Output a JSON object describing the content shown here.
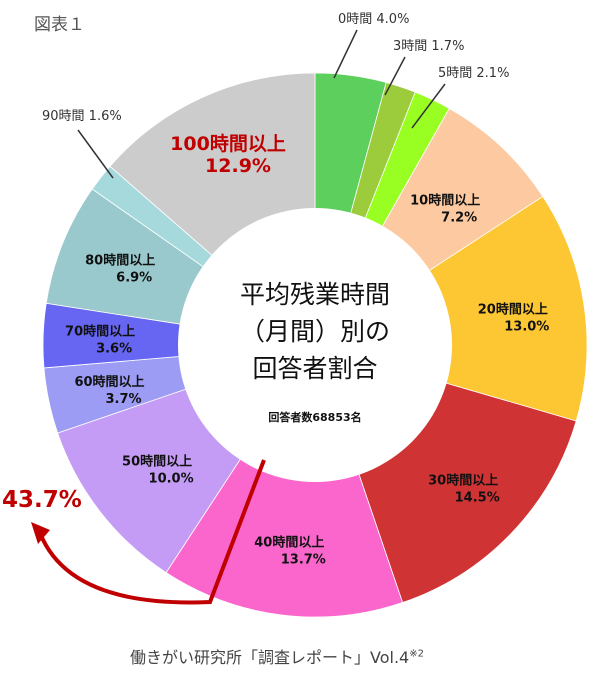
{
  "figure_label": "図表１",
  "source_text": "働きがい研究所「調査レポート」Vol.4",
  "source_note": "※2",
  "bracket_total": "43.7%",
  "chart_data": {
    "type": "pie",
    "center_title_lines": [
      "平均残業時間",
      "（月間）別の",
      "回答者割合"
    ],
    "center_subtitle": "回答者数68853名",
    "slices": [
      {
        "label": "0時間",
        "value": 4.0,
        "value_text": "4.0%",
        "color": "#5dcf5d"
      },
      {
        "label": "3時間",
        "value": 1.7,
        "value_text": "1.7%",
        "color": "#9ccc3c"
      },
      {
        "label": "5時間",
        "value": 2.1,
        "value_text": "2.1%",
        "color": "#99ff22"
      },
      {
        "label": "10時間以上",
        "value": 7.2,
        "value_text": "7.2%",
        "color": "#fcc9a0"
      },
      {
        "label": "20時間以上",
        "value": 13.0,
        "value_text": "13.0%",
        "color": "#fdc733"
      },
      {
        "label": "30時間以上",
        "value": 14.5,
        "value_text": "14.5%",
        "color": "#cf3333"
      },
      {
        "label": "40時間以上",
        "value": 13.7,
        "value_text": "13.7%",
        "color": "#fa66cc"
      },
      {
        "label": "50時間以上",
        "value": 10.0,
        "value_text": "10.0%",
        "color": "#c49cf5"
      },
      {
        "label": "60時間以上",
        "value": 3.7,
        "value_text": "3.7%",
        "color": "#9c9cf5"
      },
      {
        "label": "70時間以上",
        "value": 3.6,
        "value_text": "3.6%",
        "color": "#6666f2"
      },
      {
        "label": "80時間以上",
        "value": 6.9,
        "value_text": "6.9%",
        "color": "#99c9cc"
      },
      {
        "label": "90時間",
        "value": 1.6,
        "value_text": "1.6%",
        "color": "#a6d9dc"
      },
      {
        "label": "100時間以上",
        "value": 12.9,
        "value_text": "12.9%",
        "color": "#cccccc"
      }
    ]
  }
}
